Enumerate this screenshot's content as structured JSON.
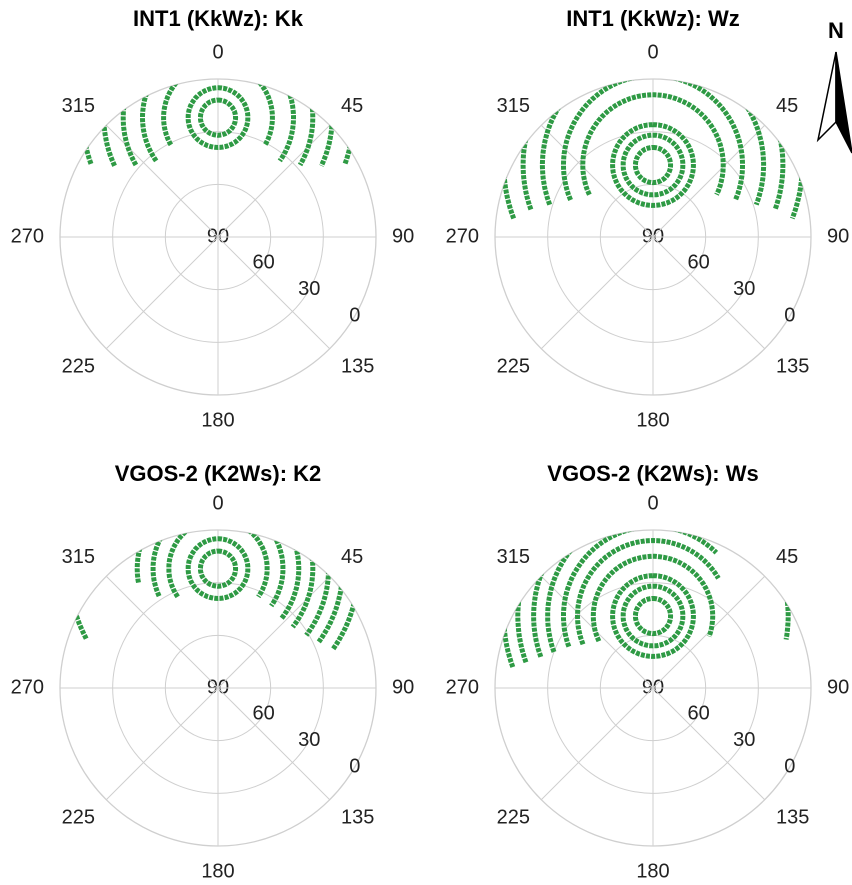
{
  "compass_label": "N",
  "chart_data": [
    {
      "type": "polar",
      "title": "INT1 (KkWz): Kk",
      "color": "#2e9a44",
      "rlim": [
        90,
        0
      ],
      "rticks": [
        90,
        60,
        30,
        0
      ],
      "thetaticks": [
        0,
        45,
        90,
        135,
        180,
        225,
        270,
        315
      ],
      "grid": true,
      "pole": {
        "azimuth": 0,
        "elevation": 22
      },
      "tracks": [
        {
          "radius": 10,
          "from": 0,
          "to": 360
        },
        {
          "radius": 17,
          "from": 0,
          "to": 360
        },
        {
          "radius": 31,
          "from": -120,
          "to": 120
        },
        {
          "radius": 43,
          "from": -125,
          "to": 125
        },
        {
          "radius": 54,
          "from": -120,
          "to": 120
        },
        {
          "radius": 65,
          "from": -115,
          "to": 115
        },
        {
          "radius": 77,
          "from": -110,
          "to": 110
        },
        {
          "radius": 88,
          "from": -105,
          "to": 105
        },
        {
          "radius": 97,
          "from": -100,
          "to": 100
        }
      ]
    },
    {
      "type": "polar",
      "title": "INT1 (KkWz): Wz",
      "color": "#2e9a44",
      "rlim": [
        90,
        0
      ],
      "rticks": [
        90,
        60,
        30,
        0
      ],
      "thetaticks": [
        0,
        45,
        90,
        135,
        180,
        225,
        270,
        315
      ],
      "grid": true,
      "pole": {
        "azimuth": 0,
        "elevation": 49
      },
      "tracks": [
        {
          "radius": 10,
          "from": 0,
          "to": 360
        },
        {
          "radius": 17,
          "from": 0,
          "to": 360
        },
        {
          "radius": 23,
          "from": 0,
          "to": 360
        },
        {
          "radius": 40,
          "from": -115,
          "to": 115
        },
        {
          "radius": 51,
          "from": -113,
          "to": 113
        },
        {
          "radius": 63,
          "from": -111,
          "to": 111
        },
        {
          "radius": 74,
          "from": -110,
          "to": 110
        },
        {
          "radius": 85,
          "from": -111,
          "to": 111
        }
      ]
    },
    {
      "type": "polar",
      "title": "VGOS-2 (K2Ws): K2",
      "color": "#2e9a44",
      "rlim": [
        90,
        0
      ],
      "rticks": [
        90,
        60,
        30,
        0
      ],
      "thetaticks": [
        0,
        45,
        90,
        135,
        180,
        225,
        270,
        315
      ],
      "grid": true,
      "pole": {
        "azimuth": 0,
        "elevation": 22
      },
      "tracks": [
        {
          "radius": 10,
          "from": 0,
          "to": 360
        },
        {
          "radius": 17,
          "from": 0,
          "to": 360
        },
        {
          "radius": 28,
          "from": -125,
          "to": 125
        },
        {
          "radius": 37,
          "from": -115,
          "to": 125
        },
        {
          "radius": 46,
          "from": -100,
          "to": 128
        },
        {
          "radius": 54,
          "from": -65,
          "to": 128
        },
        {
          "radius": 63,
          "from": -60,
          "to": 127
        },
        {
          "radius": 71,
          "from": -55,
          "to": 126
        },
        {
          "radius": 80,
          "from": -55,
          "to": 125
        },
        {
          "radius": 85,
          "from": -118,
          "to": -80
        }
      ]
    },
    {
      "type": "polar",
      "title": "VGOS-2 (K2Ws): Ws",
      "color": "#2e9a44",
      "rlim": [
        90,
        0
      ],
      "rticks": [
        90,
        60,
        30,
        0
      ],
      "thetaticks": [
        0,
        45,
        90,
        135,
        180,
        225,
        270,
        315
      ],
      "grid": true,
      "pole": {
        "azimuth": 0,
        "elevation": 49
      },
      "tracks": [
        {
          "radius": 10,
          "from": 0,
          "to": 360
        },
        {
          "radius": 17,
          "from": 0,
          "to": 360
        },
        {
          "radius": 23,
          "from": 0,
          "to": 360
        },
        {
          "radius": 34,
          "from": -115,
          "to": 110
        },
        {
          "radius": 43,
          "from": -112,
          "to": 60
        },
        {
          "radius": 51,
          "from": -110,
          "to": 45
        },
        {
          "radius": 60,
          "from": -110,
          "to": 40
        },
        {
          "radius": 68,
          "from": -110,
          "to": 35
        },
        {
          "radius": 77,
          "from": -110,
          "to": 100
        },
        {
          "radius": 85,
          "from": -110,
          "to": 20
        }
      ]
    }
  ]
}
